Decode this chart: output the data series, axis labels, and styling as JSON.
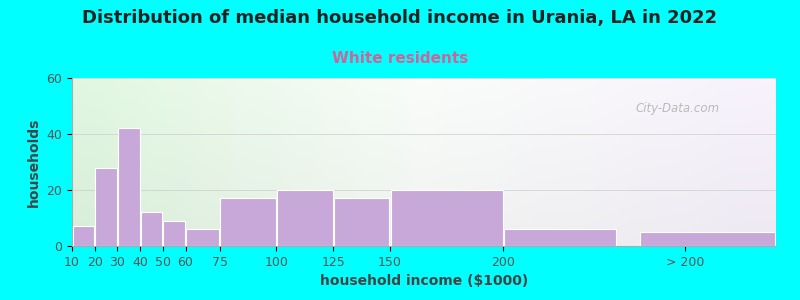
{
  "title": "Distribution of median household income in Urania, LA in 2022",
  "subtitle": "White residents",
  "xlabel": "household income ($1000)",
  "ylabel": "households",
  "background_color": "#00FFFF",
  "bar_color": "#c8a8d8",
  "bar_edge_color": "#ffffff",
  "values": [
    7,
    28,
    42,
    12,
    9,
    6,
    17,
    20,
    17,
    20,
    6,
    5
  ],
  "bar_lefts": [
    10,
    20,
    30,
    40,
    50,
    60,
    75,
    100,
    125,
    150,
    200,
    260
  ],
  "bar_widths": [
    10,
    10,
    10,
    10,
    10,
    15,
    25,
    25,
    25,
    50,
    50,
    60
  ],
  "ylim": [
    0,
    60
  ],
  "yticks": [
    0,
    20,
    40,
    60
  ],
  "title_fontsize": 13,
  "subtitle_fontsize": 11,
  "subtitle_color": "#cc6699",
  "axis_label_fontsize": 10,
  "tick_label_fontsize": 9,
  "watermark": "City-Data.com",
  "xtick_positions": [
    10,
    20,
    30,
    40,
    50,
    60,
    75,
    100,
    125,
    150,
    200,
    280
  ],
  "xtick_labels": [
    "10",
    "20",
    "30",
    "40",
    "50",
    "60",
    "75",
    "100",
    "125",
    "150",
    "200",
    "> 200"
  ],
  "xlim": [
    10,
    320
  ]
}
